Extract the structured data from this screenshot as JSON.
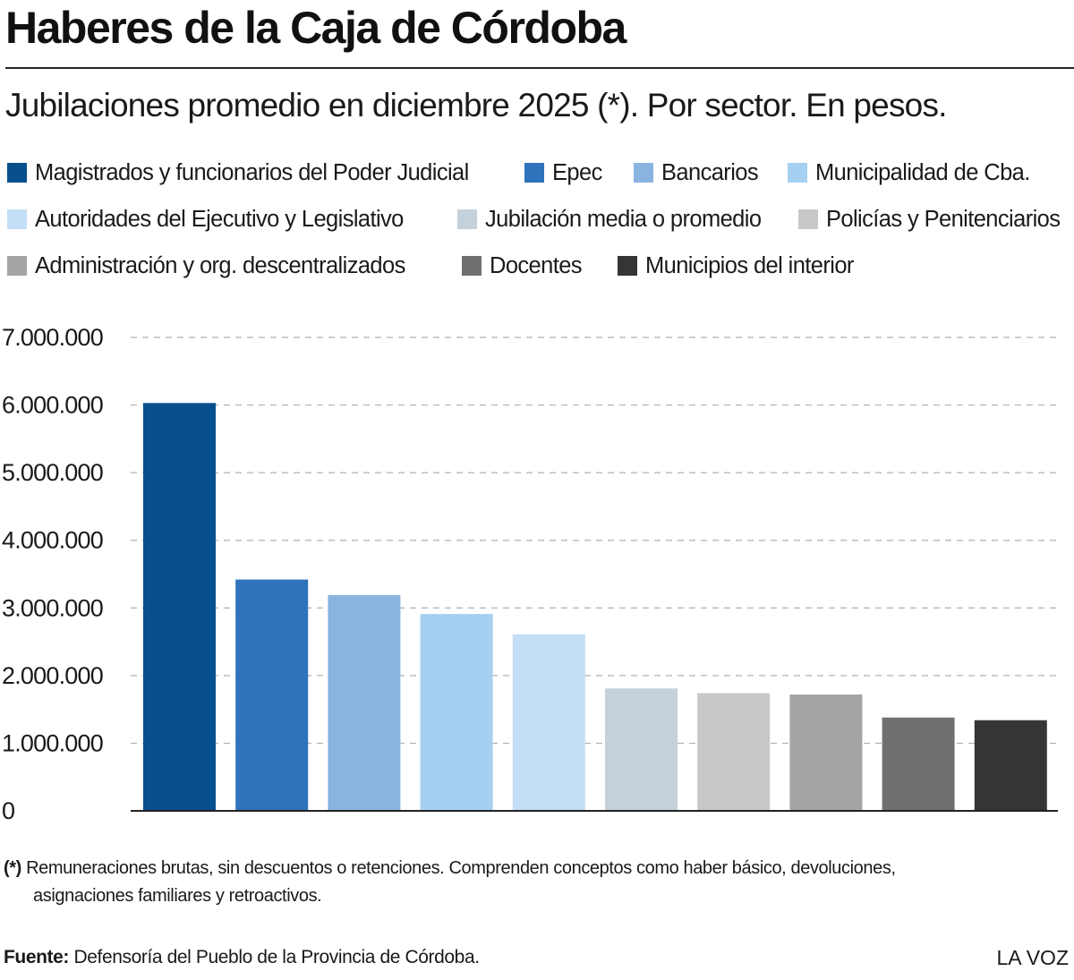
{
  "header": {
    "title": "Haberes de la Caja de Córdoba",
    "subtitle": "Jubilaciones promedio en diciembre 2025 (*). Por sector. En pesos."
  },
  "chart_data": {
    "type": "bar",
    "title": "Haberes de la Caja de Córdoba",
    "subtitle": "Jubilaciones promedio en diciembre 2025 (*). Por sector. En pesos.",
    "categories": [
      "Magistrados y funcionarios del Poder Judicial",
      "Epec",
      "Bancarios",
      "Municipalidad de Cba.",
      "Autoridades del Ejecutivo y Legislativo",
      "Jubilación media o promedio",
      "Policías y Penitenciarios",
      "Administración y org. descentralizados",
      "Docentes",
      "Municipios del interior"
    ],
    "values": [
      6030000,
      3420000,
      3190000,
      2910000,
      2610000,
      1810000,
      1740000,
      1720000,
      1380000,
      1340000
    ],
    "colors": [
      "#08508d",
      "#2e73bb",
      "#8ab4e0",
      "#a5d0f1",
      "#c4def5",
      "#c5d1da",
      "#c8c8c8",
      "#a5a5a5",
      "#707070",
      "#353535"
    ],
    "ylim": [
      0,
      7000000
    ],
    "yticks": [
      "0",
      "1.000.000",
      "2.000.000",
      "3.000.000",
      "4.000.000",
      "5.000.000",
      "6.000.000",
      "7.000.000"
    ],
    "grid": "dashed horizontal",
    "legend_position": "top"
  },
  "footnote": {
    "marker": "(*)",
    "line1": "Remuneraciones brutas, sin descuentos o retenciones. Comprenden conceptos como haber básico, devoluciones,",
    "line2": "asignaciones familiares y retroactivos."
  },
  "source": {
    "label": "Fuente:",
    "text": "Defensoría del Pueblo de la Provincia de Córdoba."
  },
  "brand": "LA VOZ"
}
